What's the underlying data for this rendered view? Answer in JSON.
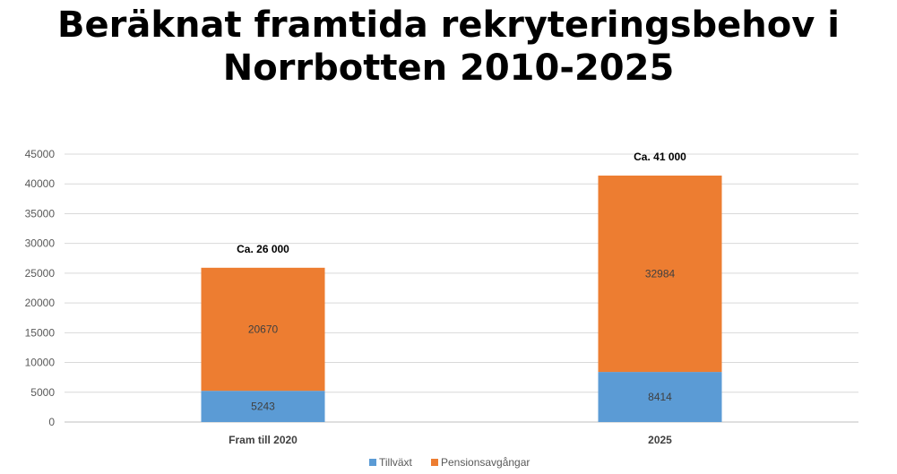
{
  "chart_data": {
    "type": "bar",
    "stacked": true,
    "title": [
      "Beräknat framtida rekryteringsbehov i",
      "Norrbotten 2010-2025"
    ],
    "categories": [
      "Fram till 2020",
      "2025"
    ],
    "series": [
      {
        "name": "Tillväxt",
        "values": [
          5243,
          8414
        ],
        "color": "#5b9bd5"
      },
      {
        "name": "Pensionsavgångar",
        "values": [
          20670,
          32984
        ],
        "color": "#ed7d31"
      }
    ],
    "totals": [
      "Ca. 26 000",
      "Ca. 41 000"
    ],
    "ylim": [
      0,
      45000
    ],
    "yticks": [
      0,
      5000,
      10000,
      15000,
      20000,
      25000,
      30000,
      35000,
      40000,
      45000
    ],
    "grid": true,
    "legend": "bottom"
  }
}
